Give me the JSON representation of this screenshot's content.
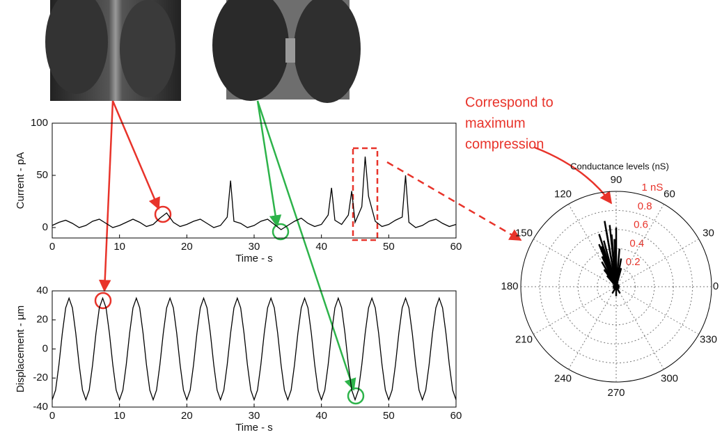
{
  "chart_data": [
    {
      "type": "line",
      "ylabel": "Current - pA",
      "xlabel": "Time - s",
      "color": "#000000",
      "x": [
        0,
        1,
        2,
        3,
        4,
        5,
        6,
        7,
        8,
        9,
        10,
        11,
        12,
        13,
        14,
        15,
        16,
        17,
        18,
        19,
        20,
        21,
        22,
        23,
        24,
        25,
        26,
        26.5,
        27,
        28,
        29,
        30,
        31,
        32,
        33,
        34,
        35,
        36,
        37,
        38,
        39,
        40,
        41,
        41.5,
        42,
        43,
        44,
        44.5,
        45,
        46,
        46.5,
        47,
        48,
        49,
        50,
        51,
        52,
        52.5,
        53,
        54,
        55,
        56,
        57,
        58,
        59,
        60
      ],
      "values": [
        2,
        5,
        7,
        4,
        0,
        2,
        6,
        8,
        4,
        0,
        2,
        5,
        8,
        5,
        1,
        3,
        9,
        14,
        5,
        1,
        3,
        6,
        8,
        4,
        0,
        2,
        10,
        45,
        6,
        4,
        0,
        2,
        6,
        8,
        3,
        -2,
        2,
        6,
        9,
        4,
        1,
        3,
        12,
        38,
        7,
        3,
        12,
        35,
        5,
        20,
        68,
        30,
        6,
        1,
        3,
        7,
        10,
        50,
        5,
        0,
        2,
        6,
        8,
        4,
        1,
        3
      ],
      "xlim": [
        0,
        60
      ],
      "xticks": [
        0,
        10,
        20,
        30,
        40,
        50,
        60
      ],
      "ylim": [
        -10,
        100
      ],
      "yticks": [
        0,
        50,
        100
      ]
    },
    {
      "type": "line",
      "ylabel": "Displacement - µm",
      "xlabel": "Time - s",
      "color": "#000000",
      "x": [
        0,
        0.5,
        1,
        1.5,
        2,
        2.5,
        3,
        3.5,
        4,
        4.5,
        5,
        5.5,
        6,
        6.5,
        7,
        7.5,
        8,
        8.5,
        9,
        9.5,
        10,
        10.5,
        11,
        11.5,
        12,
        12.5,
        13,
        13.5,
        14,
        14.5,
        15,
        15.5,
        16,
        16.5,
        17,
        17.5,
        18,
        18.5,
        19,
        19.5,
        20,
        20.5,
        21,
        21.5,
        22,
        22.5,
        23,
        23.5,
        24,
        24.5,
        25,
        25.5,
        26,
        26.5,
        27,
        27.5,
        28,
        28.5,
        29,
        29.5,
        30,
        30.5,
        31,
        31.5,
        32,
        32.5,
        33,
        33.5,
        34,
        34.5,
        35,
        35.5,
        36,
        36.5,
        37,
        37.5,
        38,
        38.5,
        39,
        39.5,
        40,
        40.5,
        41,
        41.5,
        42,
        42.5,
        43,
        43.5,
        44,
        44.5,
        45,
        45.5,
        46,
        46.5,
        47,
        47.5,
        48,
        48.5,
        49,
        49.5,
        50,
        50.5,
        51,
        51.5,
        52,
        52.5,
        53,
        53.5,
        54,
        54.5,
        55,
        55.5,
        56,
        56.5,
        57,
        57.5,
        58,
        58.5,
        59,
        59.5,
        60
      ],
      "values": [
        -35,
        -28.3,
        -10.8,
        10.8,
        28.3,
        35,
        28.3,
        10.8,
        -10.8,
        -28.3,
        -35,
        -28.3,
        -10.8,
        10.8,
        28.3,
        35,
        28.3,
        10.8,
        -10.8,
        -28.3,
        -35,
        -28.3,
        -10.8,
        10.8,
        28.3,
        35,
        28.3,
        10.8,
        -10.8,
        -28.3,
        -35,
        -28.3,
        -10.8,
        10.8,
        28.3,
        35,
        28.3,
        10.8,
        -10.8,
        -28.3,
        -35,
        -28.3,
        -10.8,
        10.8,
        28.3,
        35,
        28.3,
        10.8,
        -10.8,
        -28.3,
        -35,
        -28.3,
        -10.8,
        10.8,
        28.3,
        35,
        28.3,
        10.8,
        -10.8,
        -28.3,
        -35,
        -28.3,
        -10.8,
        10.8,
        28.3,
        35,
        28.3,
        10.8,
        -10.8,
        -28.3,
        -35,
        -28.3,
        -10.8,
        10.8,
        28.3,
        35,
        28.3,
        10.8,
        -10.8,
        -28.3,
        -35,
        -28.3,
        -10.8,
        10.8,
        28.3,
        35,
        28.3,
        10.8,
        -10.8,
        -28.3,
        -35,
        -28.3,
        -10.8,
        10.8,
        28.3,
        35,
        28.3,
        10.8,
        -10.8,
        -28.3,
        -35,
        -28.3,
        -10.8,
        10.8,
        28.3,
        35,
        28.3,
        10.8,
        -10.8,
        -28.3,
        -35,
        -28.3,
        -10.8,
        10.8,
        28.3,
        35,
        28.3,
        10.8,
        -10.8,
        -28.3,
        -35
      ],
      "xlim": [
        0,
        60
      ],
      "xticks": [
        0,
        10,
        20,
        30,
        40,
        50,
        60
      ],
      "ylim": [
        -40,
        40
      ],
      "yticks": [
        -40,
        -20,
        0,
        20,
        40
      ]
    },
    {
      "type": "polar",
      "title": "Conductance levels (nS)",
      "annotation": [
        "Correspond to",
        "maximum",
        "compression"
      ],
      "color": "#000000",
      "rtick_color": "#e8332a",
      "theta": [
        90,
        95,
        100,
        105,
        110,
        115,
        120,
        85,
        80,
        75,
        100,
        108,
        112,
        96,
        92,
        125,
        130,
        270,
        240,
        300
      ],
      "r": [
        0.62,
        0.55,
        0.6,
        0.5,
        0.45,
        0.35,
        0.3,
        0.4,
        0.3,
        0.2,
        0.7,
        0.58,
        0.48,
        0.65,
        0.5,
        0.22,
        0.15,
        0.1,
        0.08,
        0.08
      ],
      "rlim": [
        0,
        1
      ],
      "rticks": [
        0.2,
        0.4,
        0.6,
        0.8,
        {
          "value": 1,
          "label": "1 nS"
        }
      ],
      "thetaticks": [
        0,
        30,
        60,
        90,
        120,
        150,
        180,
        210,
        240,
        270,
        300,
        330
      ]
    }
  ]
}
